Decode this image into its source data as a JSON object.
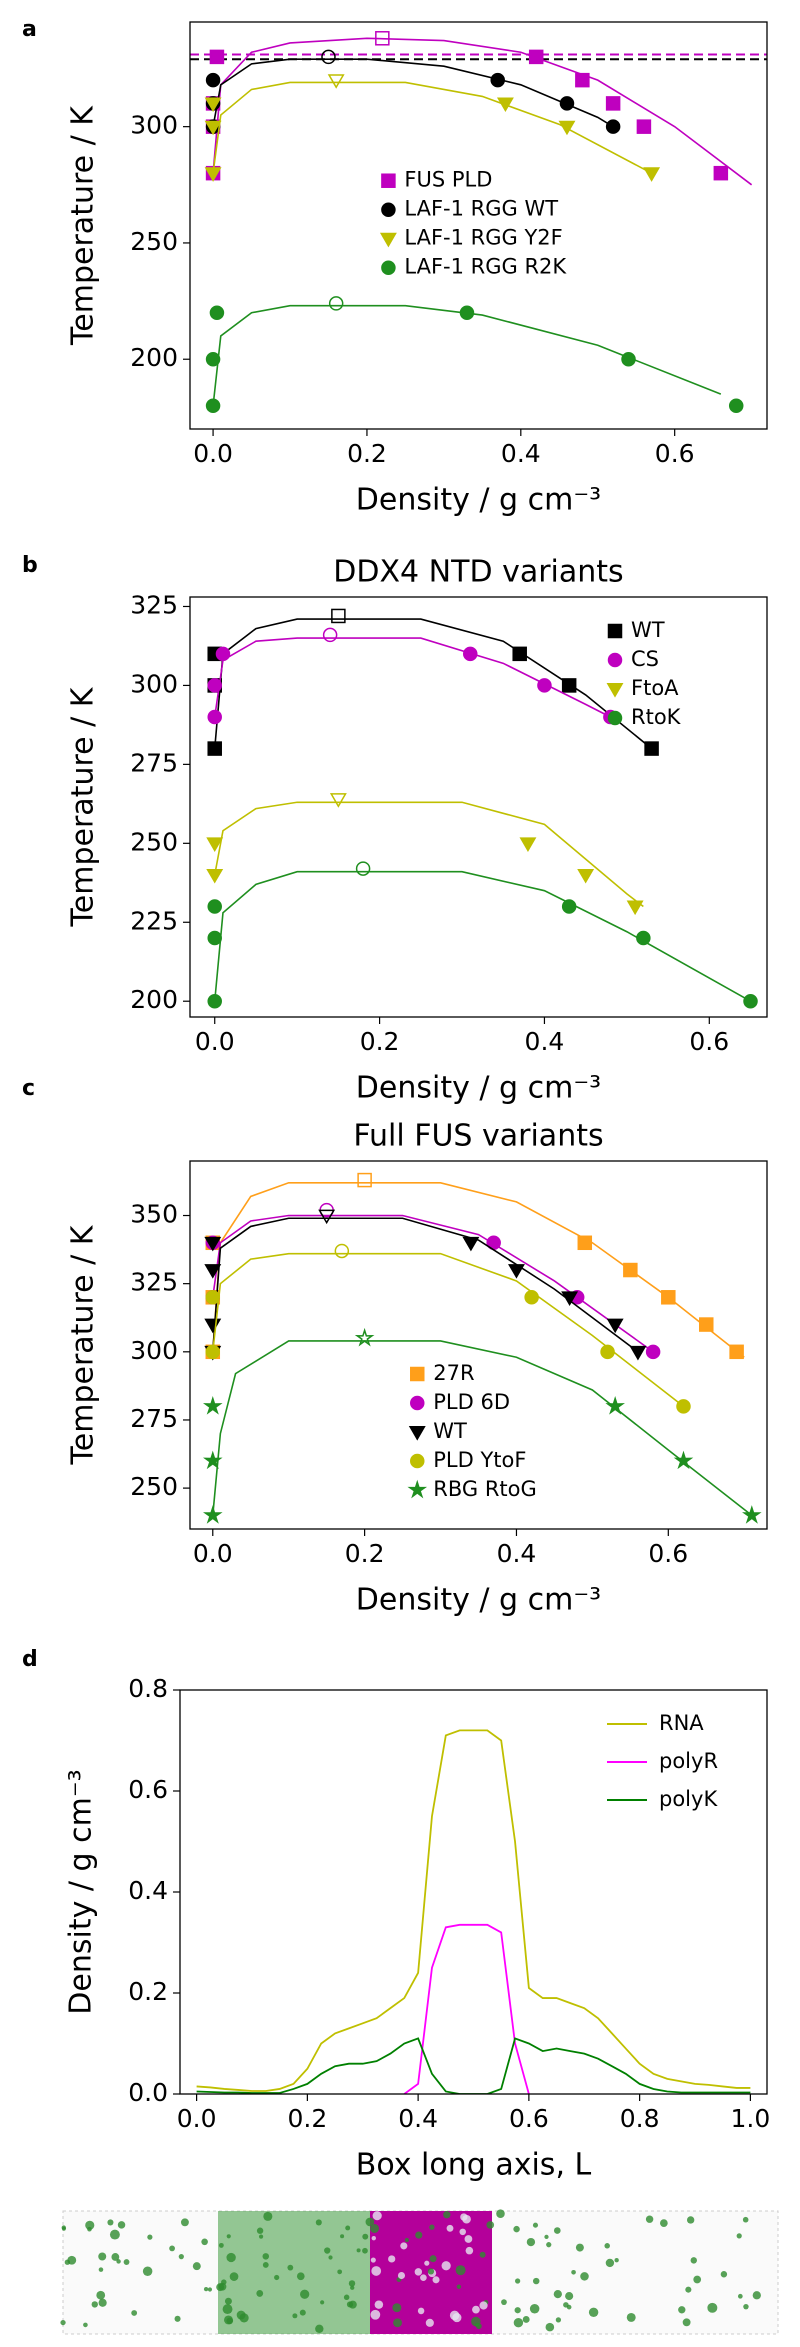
{
  "chart_data": [
    {
      "type": "scatter",
      "panel": "a",
      "xlabel": "Density / g cm⁻³",
      "ylabel": "Temperature / K",
      "xlim": [
        -0.03,
        0.72
      ],
      "ylim": [
        170,
        345
      ],
      "xticks": [
        {
          "value": 0,
          "label": "0.0"
        },
        0.2,
        0.4,
        0.6
      ],
      "yticks": [
        200,
        250,
        300
      ],
      "legend": "center",
      "hlines": [
        {
          "value": 331,
          "color": "#bf00bf"
        },
        {
          "value": 329,
          "color": "#000000"
        }
      ],
      "series": [
        {
          "name": "FUS PLD",
          "color": "#bf00bf",
          "marker": "square",
          "x": [
            0,
            0,
            0,
            0.005,
            0.42,
            0.48,
            0.52,
            0.56,
            0.66
          ],
          "values": [
            280,
            300,
            310,
            330,
            330,
            320,
            310,
            300,
            280
          ],
          "critical_x": 0.22,
          "critical_y": 338,
          "fit_x": [
            0,
            0.01,
            0.05,
            0.1,
            0.2,
            0.3,
            0.4,
            0.5,
            0.6,
            0.7
          ],
          "fit_y": [
            280,
            318,
            332,
            336,
            338,
            337,
            332,
            320,
            300,
            275
          ]
        },
        {
          "name": "LAF-1 RGG WT",
          "color": "#000000",
          "marker": "circle",
          "x": [
            0,
            0,
            0,
            0.37,
            0.46,
            0.52
          ],
          "values": [
            300,
            310,
            320,
            320,
            310,
            300
          ],
          "critical_x": 0.15,
          "critical_y": 330,
          "fit_x": [
            0,
            0.01,
            0.05,
            0.1,
            0.2,
            0.3,
            0.4,
            0.5,
            0.52
          ],
          "fit_y": [
            300,
            318,
            327,
            329,
            329,
            326,
            318,
            304,
            300
          ]
        },
        {
          "name": "LAF-1 RGG Y2F",
          "color": "#bfbf00",
          "marker": "triangle_down",
          "x": [
            0,
            0,
            0,
            0.38,
            0.46,
            0.57
          ],
          "values": [
            280,
            300,
            310,
            310,
            300,
            280
          ],
          "critical_x": 0.16,
          "critical_y": 320,
          "fit_x": [
            0,
            0.01,
            0.05,
            0.1,
            0.25,
            0.35,
            0.45,
            0.57
          ],
          "fit_y": [
            280,
            305,
            316,
            319,
            319,
            313,
            301,
            280
          ]
        },
        {
          "name": "LAF-1 RGG R2K",
          "color": "#1f8f1f",
          "marker": "circle",
          "x": [
            0,
            0,
            0.005,
            0.33,
            0.54,
            0.68
          ],
          "values": [
            180,
            200,
            220,
            220,
            200,
            180
          ],
          "critical_x": 0.16,
          "critical_y": 224,
          "fit_x": [
            0,
            0.01,
            0.05,
            0.1,
            0.25,
            0.35,
            0.5,
            0.66
          ],
          "fit_y": [
            180,
            210,
            220,
            223,
            223,
            219,
            206,
            185
          ]
        }
      ]
    },
    {
      "type": "scatter",
      "panel": "b",
      "title": "DDX4 NTD variants",
      "xlabel": "Density / g cm⁻³",
      "ylabel": "Temperature / K",
      "xlim": [
        -0.03,
        0.67
      ],
      "ylim": [
        195,
        328
      ],
      "xticks": [
        {
          "value": 0,
          "label": "0.0"
        },
        0.2,
        0.4,
        0.6
      ],
      "yticks": [
        200,
        225,
        250,
        275,
        300,
        325
      ],
      "legend": "upper right",
      "series": [
        {
          "name": "WT",
          "color": "#000000",
          "marker": "square",
          "x": [
            0,
            0,
            0,
            0.37,
            0.43,
            0.53
          ],
          "values": [
            280,
            300,
            310,
            310,
            300,
            280
          ],
          "critical_x": 0.15,
          "critical_y": 322,
          "fit_x": [
            0,
            0.01,
            0.05,
            0.1,
            0.25,
            0.35,
            0.45,
            0.53
          ],
          "fit_y": [
            280,
            310,
            318,
            321,
            321,
            314,
            297,
            280
          ]
        },
        {
          "name": "CS",
          "color": "#bf00bf",
          "marker": "circle",
          "x": [
            0,
            0,
            0.01,
            0.31,
            0.4,
            0.48
          ],
          "values": [
            290,
            300,
            310,
            310,
            300,
            290
          ],
          "critical_x": 0.14,
          "critical_y": 316,
          "fit_x": [
            0,
            0.01,
            0.05,
            0.1,
            0.25,
            0.35,
            0.45,
            0.48
          ],
          "fit_y": [
            290,
            308,
            314,
            315,
            315,
            307,
            294,
            290
          ]
        },
        {
          "name": "FtoA",
          "color": "#bfbf00",
          "marker": "triangle_down",
          "x": [
            0,
            0,
            0.38,
            0.45,
            0.51
          ],
          "values": [
            240,
            250,
            250,
            240,
            230
          ],
          "critical_x": 0.15,
          "critical_y": 264,
          "fit_x": [
            0,
            0.01,
            0.05,
            0.1,
            0.3,
            0.4,
            0.5,
            0.52
          ],
          "fit_y": [
            240,
            254,
            261,
            263,
            263,
            256,
            234,
            230
          ]
        },
        {
          "name": "RtoK",
          "color": "#1f8f1f",
          "marker": "circle",
          "x": [
            0,
            0,
            0,
            0.43,
            0.52,
            0.65
          ],
          "values": [
            200,
            220,
            230,
            230,
            220,
            200
          ],
          "critical_x": 0.18,
          "critical_y": 242,
          "fit_x": [
            0,
            0.01,
            0.05,
            0.1,
            0.3,
            0.4,
            0.5,
            0.65
          ],
          "fit_y": [
            200,
            228,
            237,
            241,
            241,
            235,
            222,
            200
          ]
        }
      ]
    },
    {
      "type": "scatter",
      "panel": "c",
      "title": "Full FUS variants",
      "xlabel": "Density / g cm⁻³",
      "ylabel": "Temperature / K",
      "xlim": [
        -0.03,
        0.73
      ],
      "ylim": [
        235,
        370
      ],
      "xticks": [
        {
          "value": 0,
          "label": "0.0"
        },
        0.2,
        0.4,
        0.6
      ],
      "yticks": [
        250,
        275,
        300,
        325,
        350
      ],
      "legend": "lower center",
      "series": [
        {
          "name": "27R",
          "color": "#ff9f1a",
          "marker": "square",
          "x": [
            0,
            0,
            0,
            0.49,
            0.55,
            0.6,
            0.65,
            0.69
          ],
          "values": [
            300,
            320,
            340,
            340,
            330,
            320,
            310,
            300
          ],
          "critical_x": 0.2,
          "critical_y": 363,
          "fit_x": [
            0,
            0.01,
            0.05,
            0.1,
            0.3,
            0.4,
            0.5,
            0.6,
            0.7
          ],
          "fit_y": [
            300,
            340,
            357,
            362,
            362,
            355,
            340,
            320,
            298
          ]
        },
        {
          "name": "PLD 6D",
          "color": "#bf00bf",
          "marker": "circle",
          "x": [
            0,
            0,
            0.37,
            0.48,
            0.58
          ],
          "values": [
            320,
            340,
            340,
            320,
            300
          ],
          "critical_x": 0.15,
          "critical_y": 352,
          "fit_x": [
            0,
            0.01,
            0.05,
            0.1,
            0.25,
            0.35,
            0.45,
            0.58
          ],
          "fit_y": [
            320,
            340,
            348,
            350,
            350,
            343,
            326,
            300
          ]
        },
        {
          "name": "WT",
          "color": "#000000",
          "marker": "triangle_down",
          "x": [
            0,
            0,
            0,
            0,
            0.34,
            0.4,
            0.47,
            0.53,
            0.56
          ],
          "values": [
            300,
            310,
            330,
            340,
            340,
            330,
            320,
            310,
            300
          ],
          "critical_x": 0.15,
          "critical_y": 350,
          "fit_x": [
            0,
            0.01,
            0.05,
            0.1,
            0.25,
            0.35,
            0.45,
            0.56
          ],
          "fit_y": [
            300,
            338,
            346,
            349,
            349,
            341,
            323,
            300
          ]
        },
        {
          "name": "PLD YtoF",
          "color": "#bfbf00",
          "marker": "circle",
          "x": [
            0,
            0,
            0.42,
            0.52,
            0.62
          ],
          "values": [
            300,
            320,
            320,
            300,
            280
          ],
          "critical_x": 0.17,
          "critical_y": 337,
          "fit_x": [
            0,
            0.01,
            0.05,
            0.1,
            0.3,
            0.4,
            0.5,
            0.62
          ],
          "fit_y": [
            300,
            325,
            334,
            336,
            336,
            326,
            306,
            280
          ]
        },
        {
          "name": "RBG RtoG",
          "color": "#1f8f1f",
          "marker": "star",
          "x": [
            0,
            0,
            0,
            0.53,
            0.62,
            0.71
          ],
          "values": [
            240,
            260,
            280,
            280,
            260,
            240
          ],
          "critical_x": 0.2,
          "critical_y": 305,
          "fit_x": [
            0,
            0.01,
            0.03,
            0.1,
            0.3,
            0.4,
            0.5,
            0.6,
            0.71
          ],
          "fit_y": [
            240,
            270,
            292,
            304,
            304,
            298,
            286,
            264,
            240
          ]
        }
      ]
    },
    {
      "type": "line",
      "panel": "d",
      "xlabel": "Box long axis, L",
      "ylabel": "Density / g cm⁻³",
      "xlim": [
        -0.03,
        1.03
      ],
      "ylim": [
        0,
        0.8
      ],
      "xticks": [
        {
          "value": 0,
          "label": "0.0"
        },
        0.2,
        0.4,
        0.6,
        0.8,
        {
          "value": 1,
          "label": "1.0"
        }
      ],
      "yticks": [
        {
          "value": 0,
          "label": "0.0"
        },
        0.2,
        0.4,
        0.6,
        0.8
      ],
      "legend": "upper right",
      "x": [
        0,
        0.025,
        0.05,
        0.075,
        0.1,
        0.125,
        0.15,
        0.175,
        0.2,
        0.225,
        0.25,
        0.275,
        0.3,
        0.325,
        0.35,
        0.375,
        0.4,
        0.425,
        0.45,
        0.475,
        0.5,
        0.525,
        0.55,
        0.575,
        0.6,
        0.625,
        0.65,
        0.675,
        0.7,
        0.725,
        0.75,
        0.775,
        0.8,
        0.825,
        0.85,
        0.875,
        0.9,
        0.925,
        0.95,
        0.975,
        1.0
      ],
      "series": [
        {
          "name": "RNA",
          "color": "#bfbf00",
          "values": [
            0.015,
            0.013,
            0.01,
            0.008,
            0.006,
            0.006,
            0.01,
            0.02,
            0.05,
            0.1,
            0.12,
            0.13,
            0.14,
            0.15,
            0.17,
            0.19,
            0.24,
            0.55,
            0.71,
            0.72,
            0.72,
            0.72,
            0.7,
            0.5,
            0.21,
            0.19,
            0.19,
            0.18,
            0.17,
            0.15,
            0.12,
            0.09,
            0.06,
            0.04,
            0.03,
            0.025,
            0.02,
            0.018,
            0.015,
            0.012,
            0.012
          ]
        },
        {
          "name": "polyR",
          "color": "#ff00ff",
          "values": [
            null,
            null,
            null,
            null,
            null,
            null,
            null,
            null,
            null,
            null,
            null,
            null,
            null,
            null,
            null,
            0,
            0.02,
            0.25,
            0.33,
            0.335,
            0.335,
            0.335,
            0.32,
            0.1,
            0,
            null,
            null,
            null,
            null,
            null,
            null,
            null,
            null,
            null,
            null,
            null,
            null,
            null,
            null,
            null,
            null
          ]
        },
        {
          "name": "polyK",
          "color": "#008000",
          "values": [
            0.005,
            0.004,
            0.003,
            0.003,
            0.002,
            0.002,
            0.002,
            0.01,
            0.02,
            0.04,
            0.055,
            0.06,
            0.06,
            0.065,
            0.08,
            0.1,
            0.11,
            0.04,
            0.005,
            0,
            0,
            0,
            0.01,
            0.11,
            0.1,
            0.085,
            0.09,
            0.085,
            0.08,
            0.07,
            0.055,
            0.04,
            0.02,
            0.01,
            0.005,
            0.003,
            0.003,
            0.003,
            0.003,
            0.003,
            0.003
          ]
        }
      ]
    }
  ]
}
